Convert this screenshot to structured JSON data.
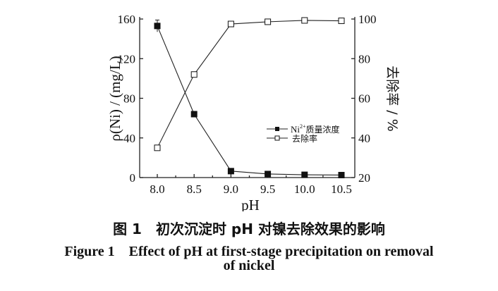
{
  "chart_data": {
    "type": "line",
    "x": [
      8.0,
      8.5,
      9.0,
      9.5,
      10.0,
      10.5
    ],
    "xlabel": "pH",
    "xticks": [
      "8.0",
      "8.5",
      "9.0",
      "9.5",
      "10.0",
      "10.5"
    ],
    "xlim": [
      7.92,
      10.67
    ],
    "ylabel_left": "ρ(Ni) / (mg/L)",
    "ylim_left": [
      0,
      160
    ],
    "yticks_left": [
      "0",
      "40",
      "80",
      "120",
      "160"
    ],
    "ylabel_right": "去除率 / %",
    "ylim_right": [
      20,
      100
    ],
    "yticks_right": [
      "20",
      "40",
      "60",
      "80",
      "100"
    ],
    "legend_position": "center-right",
    "grid": false,
    "series": [
      {
        "name": "Ni²⁺质量浓度",
        "name_base": "Ni",
        "name_sup": "2+",
        "name_rest": "质量浓度",
        "axis": "left",
        "marker": "filled-square",
        "values": [
          153,
          64,
          6.5,
          3.6,
          2.8,
          2.5
        ],
        "error": [
          6,
          2,
          0,
          0,
          0,
          0
        ]
      },
      {
        "name": "去除率",
        "axis": "right",
        "marker": "open-square",
        "values": [
          35,
          72,
          97.5,
          98.6,
          99.3,
          99.1
        ]
      }
    ]
  },
  "caption": {
    "zh": "图 1　初次沉淀时 pH 对镍去除效果的影响",
    "en_line1": "Figure 1　Effect of pH at first-stage precipitation on removal",
    "en_line2": "of nickel"
  }
}
